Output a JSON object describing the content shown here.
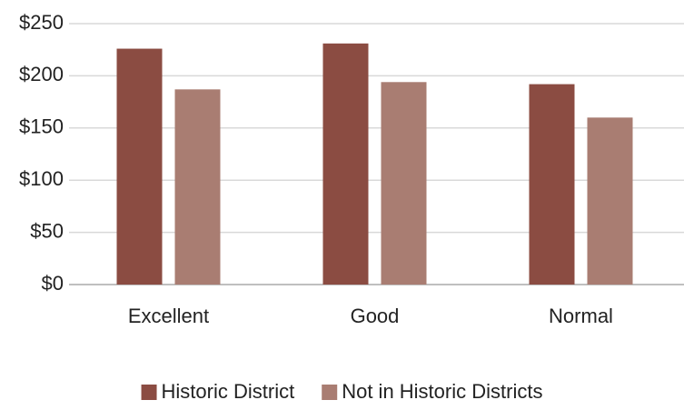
{
  "chart_data": {
    "type": "bar",
    "categories": [
      "Excellent",
      "Good",
      "Normal"
    ],
    "series": [
      {
        "name": "Historic District",
        "color": "#8b4c42",
        "values": [
          226,
          231,
          192
        ]
      },
      {
        "name": "Not in Historic Districts",
        "color": "#a97d72",
        "values": [
          187,
          194,
          160
        ]
      }
    ],
    "ylim": [
      0,
      250
    ],
    "yticks": [
      {
        "value": 0,
        "label": "$0"
      },
      {
        "value": 50,
        "label": "$50"
      },
      {
        "value": 100,
        "label": "$100"
      },
      {
        "value": 150,
        "label": "$150"
      },
      {
        "value": 200,
        "label": "$200"
      },
      {
        "value": 250,
        "label": "$250"
      }
    ],
    "grid": true,
    "legend": "bottom"
  }
}
